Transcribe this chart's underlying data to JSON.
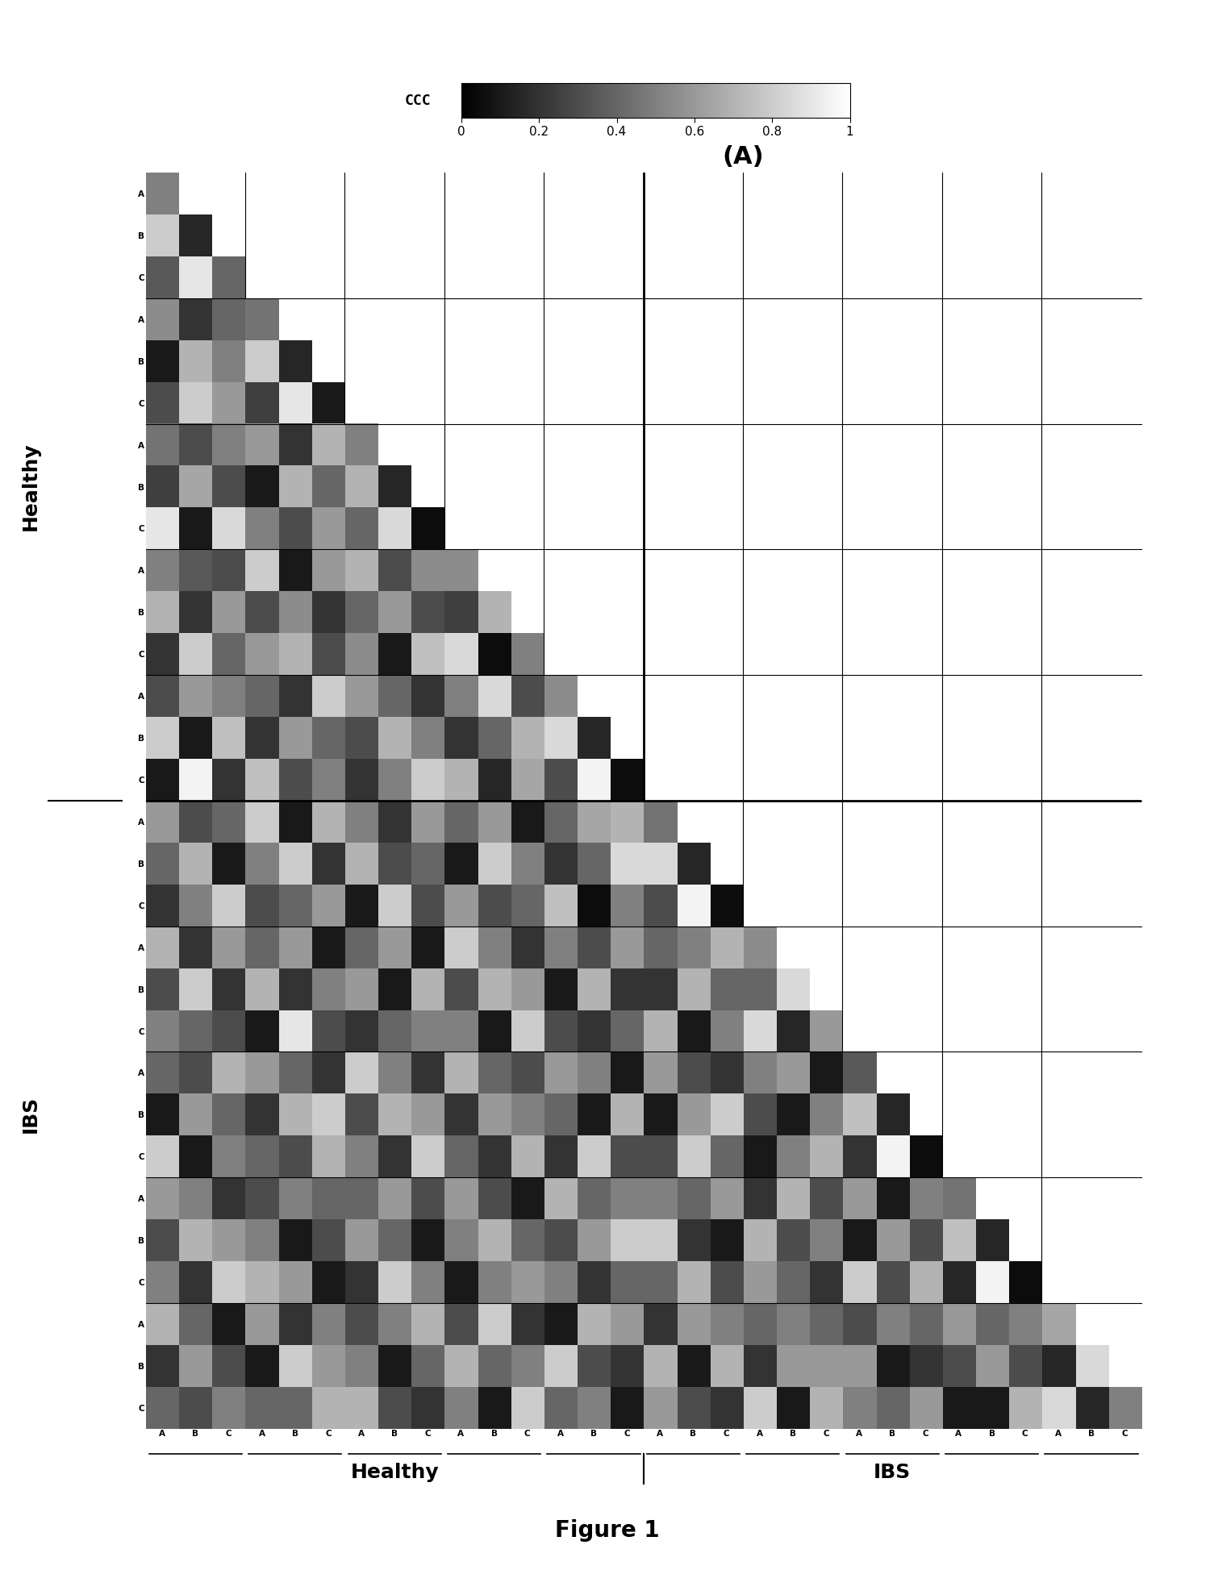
{
  "title": "(A)",
  "colorbar_label": "CCC",
  "colorbar_ticks": [
    0,
    0.2,
    0.4,
    0.6,
    0.8,
    1
  ],
  "n_groups": 10,
  "n_subgroups": 3,
  "healthy_groups": 5,
  "ibs_groups": 5,
  "sub_labels": [
    "A",
    "B",
    "C"
  ],
  "xlabel_healthy": "Healthy",
  "xlabel_ibs": "IBS",
  "ylabel_healthy": "Healthy",
  "ylabel_ibs": "IBS",
  "figure_label": "Figure 1",
  "background_color": "#ffffff",
  "matrix_data": [
    [
      0.5,
      0.9,
      0.3,
      0.0,
      0.0,
      0.0,
      0.0,
      0.0,
      0.0,
      0.0,
      0.0,
      0.0,
      0.0,
      0.0,
      0.0,
      0.0,
      0.0,
      0.0,
      0.0,
      0.0,
      0.0,
      0.0,
      0.0,
      0.0,
      0.0,
      0.0,
      0.0,
      0.0,
      0.0,
      0.0
    ],
    [
      0.8,
      0.15,
      0.85,
      0.0,
      0.0,
      0.0,
      0.0,
      0.0,
      0.0,
      0.0,
      0.0,
      0.0,
      0.0,
      0.0,
      0.0,
      0.0,
      0.0,
      0.0,
      0.0,
      0.0,
      0.0,
      0.0,
      0.0,
      0.0,
      0.0,
      0.0,
      0.0,
      0.0,
      0.0,
      0.0
    ],
    [
      0.35,
      0.9,
      0.4,
      0.0,
      0.0,
      0.0,
      0.0,
      0.0,
      0.0,
      0.0,
      0.0,
      0.0,
      0.0,
      0.0,
      0.0,
      0.0,
      0.0,
      0.0,
      0.0,
      0.0,
      0.0,
      0.0,
      0.0,
      0.0,
      0.0,
      0.0,
      0.0,
      0.0,
      0.0,
      0.0
    ],
    [
      0.55,
      0.2,
      0.4,
      0.45,
      0.85,
      0.3,
      0.0,
      0.0,
      0.0,
      0.0,
      0.0,
      0.0,
      0.0,
      0.0,
      0.0,
      0.0,
      0.0,
      0.0,
      0.0,
      0.0,
      0.0,
      0.0,
      0.0,
      0.0,
      0.0,
      0.0,
      0.0,
      0.0,
      0.0,
      0.0
    ],
    [
      0.1,
      0.7,
      0.5,
      0.8,
      0.15,
      0.9,
      0.0,
      0.0,
      0.0,
      0.0,
      0.0,
      0.0,
      0.0,
      0.0,
      0.0,
      0.0,
      0.0,
      0.0,
      0.0,
      0.0,
      0.0,
      0.0,
      0.0,
      0.0,
      0.0,
      0.0,
      0.0,
      0.0,
      0.0,
      0.0
    ],
    [
      0.3,
      0.8,
      0.6,
      0.25,
      0.9,
      0.1,
      0.0,
      0.0,
      0.0,
      0.0,
      0.0,
      0.0,
      0.0,
      0.0,
      0.0,
      0.0,
      0.0,
      0.0,
      0.0,
      0.0,
      0.0,
      0.0,
      0.0,
      0.0,
      0.0,
      0.0,
      0.0,
      0.0,
      0.0,
      0.0
    ],
    [
      0.45,
      0.3,
      0.5,
      0.6,
      0.2,
      0.7,
      0.5,
      0.75,
      0.35,
      0.0,
      0.0,
      0.0,
      0.0,
      0.0,
      0.0,
      0.0,
      0.0,
      0.0,
      0.0,
      0.0,
      0.0,
      0.0,
      0.0,
      0.0,
      0.0,
      0.0,
      0.0,
      0.0,
      0.0,
      0.0
    ],
    [
      0.25,
      0.65,
      0.3,
      0.1,
      0.7,
      0.4,
      0.7,
      0.15,
      0.85,
      0.0,
      0.0,
      0.0,
      0.0,
      0.0,
      0.0,
      0.0,
      0.0,
      0.0,
      0.0,
      0.0,
      0.0,
      0.0,
      0.0,
      0.0,
      0.0,
      0.0,
      0.0,
      0.0,
      0.0,
      0.0
    ],
    [
      0.9,
      0.1,
      0.85,
      0.5,
      0.3,
      0.6,
      0.4,
      0.85,
      0.05,
      0.0,
      0.0,
      0.0,
      0.0,
      0.0,
      0.0,
      0.0,
      0.0,
      0.0,
      0.0,
      0.0,
      0.0,
      0.0,
      0.0,
      0.0,
      0.0,
      0.0,
      0.0,
      0.0,
      0.0,
      0.0
    ],
    [
      0.5,
      0.35,
      0.3,
      0.8,
      0.1,
      0.6,
      0.7,
      0.3,
      0.55,
      0.55,
      0.25,
      0.85,
      0.0,
      0.0,
      0.0,
      0.0,
      0.0,
      0.0,
      0.0,
      0.0,
      0.0,
      0.0,
      0.0,
      0.0,
      0.0,
      0.0,
      0.0,
      0.0,
      0.0,
      0.0
    ],
    [
      0.7,
      0.2,
      0.6,
      0.3,
      0.55,
      0.2,
      0.4,
      0.6,
      0.3,
      0.25,
      0.7,
      0.15,
      0.0,
      0.0,
      0.0,
      0.0,
      0.0,
      0.0,
      0.0,
      0.0,
      0.0,
      0.0,
      0.0,
      0.0,
      0.0,
      0.0,
      0.0,
      0.0,
      0.0,
      0.0
    ],
    [
      0.2,
      0.8,
      0.4,
      0.6,
      0.7,
      0.3,
      0.55,
      0.1,
      0.75,
      0.85,
      0.05,
      0.5,
      0.0,
      0.0,
      0.0,
      0.0,
      0.0,
      0.0,
      0.0,
      0.0,
      0.0,
      0.0,
      0.0,
      0.0,
      0.0,
      0.0,
      0.0,
      0.0,
      0.0,
      0.0
    ],
    [
      0.3,
      0.6,
      0.5,
      0.4,
      0.2,
      0.8,
      0.6,
      0.4,
      0.2,
      0.5,
      0.85,
      0.3,
      0.55,
      0.85,
      0.25,
      0.0,
      0.0,
      0.0,
      0.0,
      0.0,
      0.0,
      0.0,
      0.0,
      0.0,
      0.0,
      0.0,
      0.0,
      0.0,
      0.0,
      0.0
    ],
    [
      0.8,
      0.1,
      0.75,
      0.2,
      0.6,
      0.4,
      0.3,
      0.7,
      0.5,
      0.2,
      0.4,
      0.7,
      0.85,
      0.15,
      0.9,
      0.0,
      0.0,
      0.0,
      0.0,
      0.0,
      0.0,
      0.0,
      0.0,
      0.0,
      0.0,
      0.0,
      0.0,
      0.0,
      0.0,
      0.0
    ],
    [
      0.1,
      0.95,
      0.2,
      0.75,
      0.3,
      0.5,
      0.2,
      0.5,
      0.8,
      0.7,
      0.15,
      0.65,
      0.3,
      0.95,
      0.05,
      0.0,
      0.0,
      0.0,
      0.0,
      0.0,
      0.0,
      0.0,
      0.0,
      0.0,
      0.0,
      0.0,
      0.0,
      0.0,
      0.0,
      0.0
    ],
    [
      0.6,
      0.3,
      0.4,
      0.8,
      0.1,
      0.7,
      0.5,
      0.2,
      0.6,
      0.4,
      0.6,
      0.1,
      0.4,
      0.65,
      0.7,
      0.45,
      0.85,
      0.25,
      0.0,
      0.0,
      0.0,
      0.0,
      0.0,
      0.0,
      0.0,
      0.0,
      0.0,
      0.0,
      0.0,
      0.0
    ],
    [
      0.4,
      0.7,
      0.1,
      0.5,
      0.8,
      0.2,
      0.7,
      0.3,
      0.4,
      0.1,
      0.8,
      0.5,
      0.2,
      0.4,
      0.85,
      0.85,
      0.15,
      0.95,
      0.0,
      0.0,
      0.0,
      0.0,
      0.0,
      0.0,
      0.0,
      0.0,
      0.0,
      0.0,
      0.0,
      0.0
    ],
    [
      0.2,
      0.5,
      0.8,
      0.3,
      0.4,
      0.6,
      0.1,
      0.8,
      0.3,
      0.6,
      0.3,
      0.4,
      0.75,
      0.05,
      0.5,
      0.3,
      0.95,
      0.05,
      0.0,
      0.0,
      0.0,
      0.0,
      0.0,
      0.0,
      0.0,
      0.0,
      0.0,
      0.0,
      0.0,
      0.0
    ],
    [
      0.7,
      0.2,
      0.6,
      0.4,
      0.6,
      0.1,
      0.4,
      0.6,
      0.1,
      0.8,
      0.5,
      0.2,
      0.5,
      0.3,
      0.6,
      0.4,
      0.5,
      0.7,
      0.55,
      0.35,
      0.85,
      0.0,
      0.0,
      0.0,
      0.0,
      0.0,
      0.0,
      0.0,
      0.0,
      0.0
    ],
    [
      0.3,
      0.8,
      0.2,
      0.7,
      0.2,
      0.5,
      0.6,
      0.1,
      0.7,
      0.3,
      0.7,
      0.6,
      0.1,
      0.7,
      0.2,
      0.2,
      0.7,
      0.4,
      0.4,
      0.85,
      0.15,
      0.0,
      0.0,
      0.0,
      0.0,
      0.0,
      0.0,
      0.0,
      0.0,
      0.0
    ],
    [
      0.5,
      0.4,
      0.3,
      0.1,
      0.9,
      0.3,
      0.2,
      0.4,
      0.5,
      0.5,
      0.1,
      0.8,
      0.3,
      0.2,
      0.4,
      0.7,
      0.1,
      0.5,
      0.85,
      0.15,
      0.6,
      0.0,
      0.0,
      0.0,
      0.0,
      0.0,
      0.0,
      0.0,
      0.0,
      0.0
    ],
    [
      0.4,
      0.3,
      0.7,
      0.6,
      0.4,
      0.2,
      0.8,
      0.5,
      0.2,
      0.7,
      0.4,
      0.3,
      0.6,
      0.5,
      0.1,
      0.6,
      0.3,
      0.2,
      0.5,
      0.6,
      0.1,
      0.35,
      0.75,
      0.15,
      0.0,
      0.0,
      0.0,
      0.0,
      0.0,
      0.0
    ],
    [
      0.1,
      0.6,
      0.4,
      0.2,
      0.7,
      0.8,
      0.3,
      0.7,
      0.6,
      0.2,
      0.6,
      0.5,
      0.4,
      0.1,
      0.7,
      0.1,
      0.6,
      0.8,
      0.3,
      0.1,
      0.5,
      0.75,
      0.15,
      0.95,
      0.0,
      0.0,
      0.0,
      0.0,
      0.0,
      0.0
    ],
    [
      0.8,
      0.1,
      0.5,
      0.4,
      0.3,
      0.7,
      0.5,
      0.2,
      0.8,
      0.4,
      0.2,
      0.7,
      0.2,
      0.8,
      0.3,
      0.3,
      0.8,
      0.4,
      0.1,
      0.5,
      0.7,
      0.2,
      0.95,
      0.05,
      0.0,
      0.0,
      0.0,
      0.0,
      0.0,
      0.0
    ],
    [
      0.6,
      0.5,
      0.2,
      0.3,
      0.5,
      0.4,
      0.4,
      0.6,
      0.3,
      0.6,
      0.3,
      0.1,
      0.7,
      0.4,
      0.5,
      0.5,
      0.4,
      0.6,
      0.2,
      0.7,
      0.3,
      0.6,
      0.1,
      0.5,
      0.45,
      0.75,
      0.15,
      0.0,
      0.0,
      0.0
    ],
    [
      0.3,
      0.7,
      0.6,
      0.5,
      0.1,
      0.3,
      0.6,
      0.4,
      0.1,
      0.5,
      0.7,
      0.4,
      0.3,
      0.6,
      0.8,
      0.8,
      0.2,
      0.1,
      0.7,
      0.3,
      0.5,
      0.1,
      0.6,
      0.3,
      0.75,
      0.15,
      0.85,
      0.0,
      0.0,
      0.0
    ],
    [
      0.5,
      0.2,
      0.8,
      0.7,
      0.6,
      0.1,
      0.2,
      0.8,
      0.5,
      0.1,
      0.5,
      0.6,
      0.5,
      0.2,
      0.4,
      0.4,
      0.7,
      0.3,
      0.6,
      0.4,
      0.2,
      0.8,
      0.3,
      0.7,
      0.15,
      0.95,
      0.05,
      0.0,
      0.0,
      0.0
    ],
    [
      0.7,
      0.4,
      0.1,
      0.6,
      0.2,
      0.5,
      0.3,
      0.5,
      0.7,
      0.3,
      0.8,
      0.2,
      0.1,
      0.7,
      0.6,
      0.2,
      0.6,
      0.5,
      0.4,
      0.5,
      0.4,
      0.3,
      0.5,
      0.4,
      0.6,
      0.4,
      0.5,
      0.65,
      0.15,
      0.85
    ],
    [
      0.2,
      0.6,
      0.3,
      0.1,
      0.8,
      0.6,
      0.5,
      0.1,
      0.4,
      0.7,
      0.4,
      0.5,
      0.8,
      0.3,
      0.2,
      0.7,
      0.1,
      0.7,
      0.2,
      0.6,
      0.6,
      0.6,
      0.1,
      0.2,
      0.3,
      0.6,
      0.3,
      0.15,
      0.85,
      0.15
    ],
    [
      0.4,
      0.3,
      0.5,
      0.4,
      0.4,
      0.7,
      0.7,
      0.3,
      0.2,
      0.5,
      0.1,
      0.8,
      0.4,
      0.5,
      0.1,
      0.6,
      0.3,
      0.2,
      0.8,
      0.1,
      0.7,
      0.5,
      0.4,
      0.6,
      0.1,
      0.1,
      0.7,
      0.85,
      0.15,
      0.5
    ]
  ]
}
